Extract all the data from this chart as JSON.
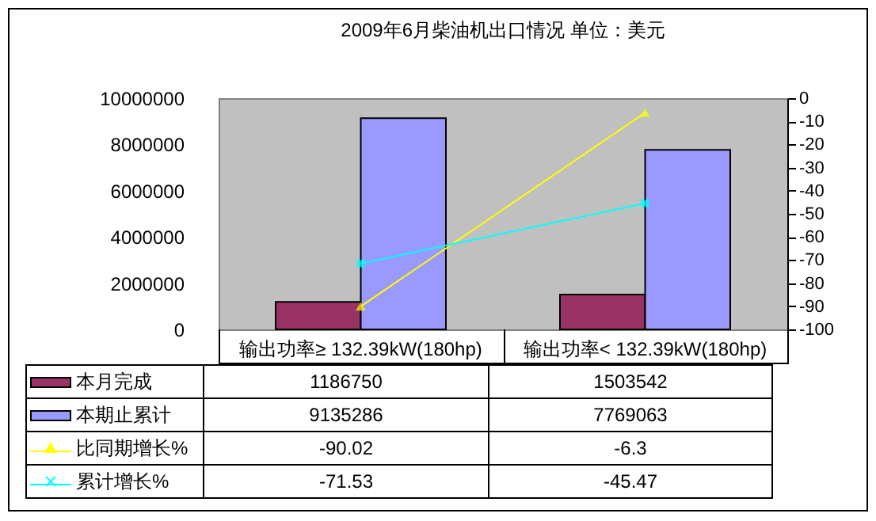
{
  "chart_data": {
    "type": "bar",
    "title": "2009年6月柴油机出口情况 单位：美元",
    "categories": [
      "输出功率≥ 132.39kW(180hp)",
      "输出功率< 132.39kW(180hp)"
    ],
    "series": [
      {
        "name": "本月完成",
        "color": "#993366",
        "values": [
          1186750,
          1503542
        ]
      },
      {
        "name": "本期止累计",
        "color": "#9999ff",
        "values": [
          9135286,
          7769063
        ]
      },
      {
        "name": "比同期增长%",
        "type": "line",
        "axis": "y2",
        "marker": "triangle",
        "color": "#ffff00",
        "values": [
          -90.02,
          -6.3
        ]
      },
      {
        "name": "累计增长%",
        "type": "line",
        "axis": "y2",
        "marker": "cross",
        "color": "#00ffff",
        "values": [
          -71.53,
          -45.47
        ]
      }
    ],
    "ylim": [
      0,
      10000000
    ],
    "yticks": [
      0,
      2000000,
      4000000,
      6000000,
      8000000,
      10000000
    ],
    "y2lim": [
      -100,
      0
    ],
    "y2ticks": [
      -100,
      -90,
      -80,
      -70,
      -60,
      -50,
      -40,
      -30,
      -20,
      -10,
      0
    ],
    "grid": false,
    "legend": "bottom",
    "data_labels": true
  }
}
